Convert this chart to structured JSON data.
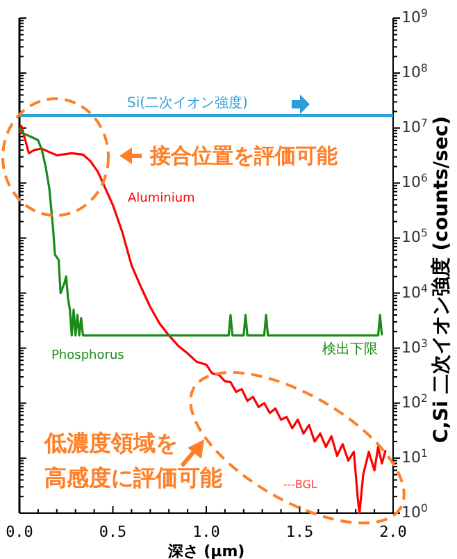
{
  "chart_data": {
    "type": "line",
    "xlabel": "深さ (μm)",
    "ylabel": "C,Si 二次イオン強度 (counts/sec)",
    "log": "y",
    "xlim": [
      0,
      2
    ],
    "ylim": [
      1,
      1000000000
    ],
    "xticks": [
      {
        "value": 0,
        "label": "0.0"
      },
      {
        "value": 0.5,
        "label": "0.5"
      },
      {
        "value": 1,
        "label": "1.0"
      },
      {
        "value": 1.5,
        "label": "1.5"
      },
      {
        "value": 2,
        "label": "2.0"
      }
    ],
    "yticks": [
      {
        "value": 1,
        "label": "10$^{0}$"
      },
      {
        "value": 10,
        "label": "10$^{1}$"
      },
      {
        "value": 100,
        "label": "10$^{2}$"
      },
      {
        "value": 1000,
        "label": "10$^{3}$"
      },
      {
        "value": 10000,
        "label": "10$^{4}$"
      },
      {
        "value": 100000,
        "label": "10$^{5}$"
      },
      {
        "value": 1000000,
        "label": "10$^{6}$"
      },
      {
        "value": 10000000,
        "label": "10$^{7}$"
      },
      {
        "value": 100000000,
        "label": "10$^{8}$"
      },
      {
        "value": 1000000000,
        "label": "10$^{9}$"
      }
    ],
    "series": [
      {
        "name": "Si(二次イオン強度)",
        "color": "#2b9fd8",
        "x": [
          0,
          2
        ],
        "values": [
          17000000,
          17000000
        ]
      },
      {
        "name": "Aluminium",
        "color": "#ff0000",
        "x": [
          0,
          0.01,
          0.03,
          0.05,
          0.08,
          0.12,
          0.2,
          0.28,
          0.34,
          0.38,
          0.42,
          0.46,
          0.5,
          0.55,
          0.6,
          0.65,
          0.7,
          0.75,
          0.8,
          0.85,
          0.9,
          0.95,
          1.0,
          1.03,
          1.07,
          1.1,
          1.13,
          1.16,
          1.19,
          1.22,
          1.25,
          1.28,
          1.31,
          1.34,
          1.37,
          1.4,
          1.43,
          1.46,
          1.49,
          1.52,
          1.55,
          1.58,
          1.61,
          1.64,
          1.67,
          1.7,
          1.73,
          1.76,
          1.79,
          1.81,
          1.82,
          1.84,
          1.87,
          1.9,
          1.92,
          1.94,
          1.96
        ],
        "values": [
          8000000,
          11000000,
          6300000,
          3500000,
          4000000,
          4200000,
          3200000,
          3500000,
          3300000,
          2500000,
          1600000,
          800000,
          400000,
          130000,
          32000,
          13000,
          5600,
          2800,
          1700,
          1100,
          800,
          560,
          500,
          350,
          320,
          250,
          240,
          160,
          180,
          110,
          130,
          85,
          100,
          66,
          80,
          50,
          56,
          35,
          50,
          28,
          40,
          20,
          28,
          16,
          25,
          11,
          18,
          9,
          13,
          2,
          1,
          5,
          13,
          6,
          16,
          8,
          14
        ]
      },
      {
        "name": "Phosphorus",
        "color": "#1a8a1a",
        "x": [
          0,
          0.02,
          0.06,
          0.1,
          0.12,
          0.14,
          0.16,
          0.18,
          0.19,
          0.21,
          0.22,
          0.24,
          0.25,
          0.26,
          0.27,
          0.28,
          0.29,
          0.3,
          0.31,
          0.32,
          0.33,
          0.34,
          1.12,
          1.13,
          1.14,
          1.2,
          1.21,
          1.22,
          1.31,
          1.32,
          1.33,
          1.92,
          1.93,
          1.94
        ],
        "values": [
          10000000,
          8000000,
          7000000,
          6000000,
          4000000,
          2000000,
          800000,
          150000,
          50000,
          40000,
          10000,
          15000,
          20000,
          8000,
          5000,
          1700,
          5000,
          1700,
          4000,
          1700,
          3500,
          1700,
          1700,
          4000,
          1700,
          1700,
          4000,
          1700,
          1700,
          4000,
          1700,
          1700,
          4000,
          1700
        ]
      }
    ],
    "annotations": [
      "接合位置を評価可能",
      "低濃度領域を",
      "高感度に評価可能",
      "検出下限",
      "---BGL"
    ]
  }
}
